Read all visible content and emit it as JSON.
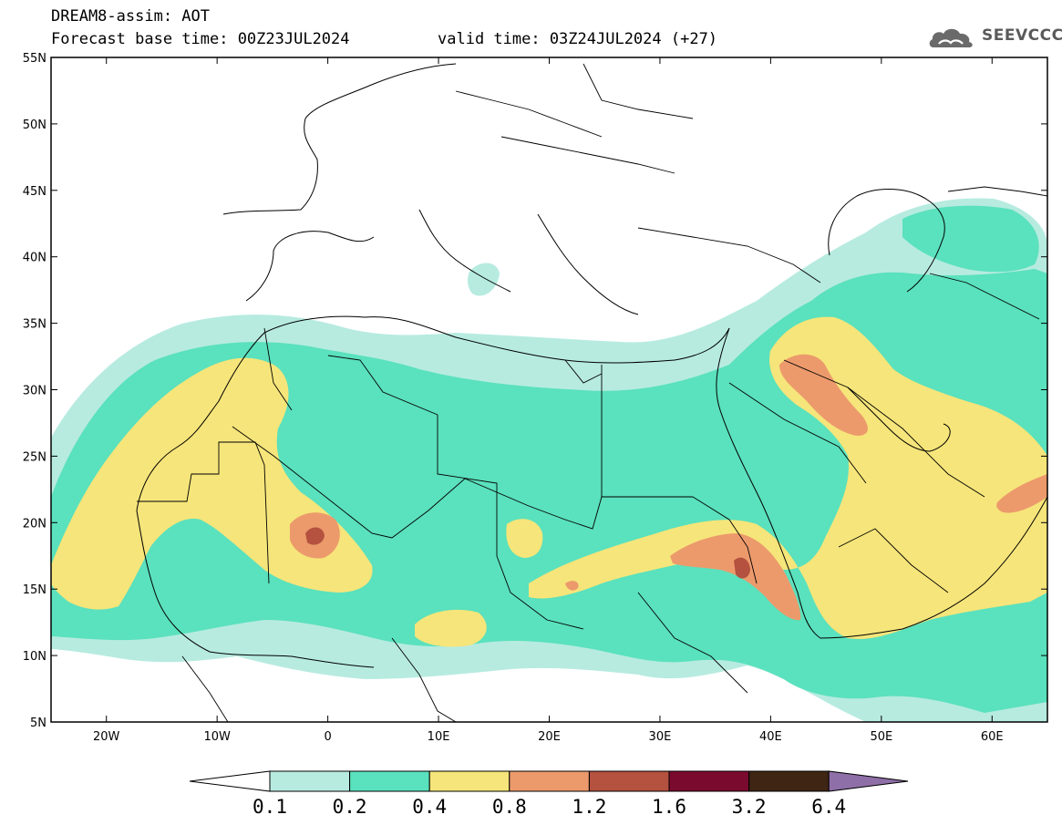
{
  "header": {
    "line1": "DREAM8-assim: AOT",
    "line2": "Forecast base time: 00Z23JUL2024",
    "valid": "valid time: 03Z24JUL2024 (+27)"
  },
  "logo": {
    "text": "SEEVCCC",
    "icon": "cloud-icon"
  },
  "map": {
    "lon_range": [
      -25,
      65
    ],
    "lat_range": [
      5,
      55
    ],
    "lat_labels": [
      "55N",
      "50N",
      "45N",
      "40N",
      "35N",
      "30N",
      "25N",
      "20N",
      "15N",
      "10N",
      "5N"
    ],
    "lon_labels": [
      "20W",
      "10W",
      "0",
      "10E",
      "20E",
      "30E",
      "40E",
      "50E",
      "60E"
    ]
  },
  "colorbar": {
    "levels": [
      "0.1",
      "0.2",
      "0.4",
      "0.8",
      "1.2",
      "1.6",
      "3.2",
      "6.4"
    ],
    "colors": [
      "#ffffff",
      "#b7ebe0",
      "#5ae1bd",
      "#f6e57a",
      "#ec9a6c",
      "#b4513f",
      "#7b0a2f",
      "#3e2514",
      "#8f6fa8"
    ]
  },
  "colors": {
    "c1": "#b7ebe0",
    "c2": "#5ae1bd",
    "c3": "#f6e57a",
    "c4": "#ec9a6c",
    "c5": "#b4513f",
    "c6": "#7b0a2f"
  }
}
